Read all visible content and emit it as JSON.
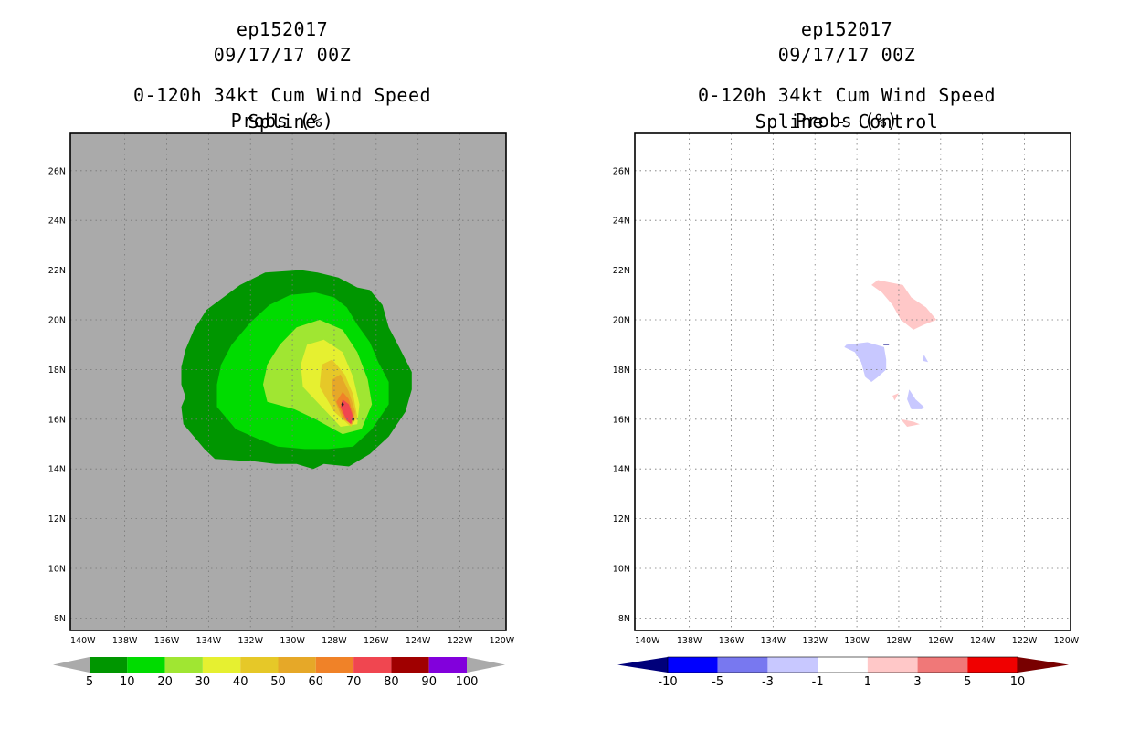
{
  "left_panel": {
    "storm_id": "ep152017",
    "datetime": "09/17/17 00Z",
    "product": "0-120h 34kt Cum Wind Speed Probs (%)",
    "subtitle": "Spline",
    "background_color": "#aaaaaa",
    "colorbar": {
      "colors": [
        "#009600",
        "#00dc00",
        "#a0e632",
        "#e6f030",
        "#e6c828",
        "#e6a828",
        "#f08228",
        "#f04650",
        "#a00000",
        "#8200dc"
      ],
      "labels": [
        "5",
        "10",
        "20",
        "30",
        "40",
        "50",
        "60",
        "70",
        "80",
        "90",
        "100"
      ]
    }
  },
  "right_panel": {
    "storm_id": "ep152017",
    "datetime": "09/17/17 00Z",
    "product": "0-120h 34kt Cum Wind Speed Probs (%)",
    "subtitle": "Spline - Control",
    "background_color": "#ffffff",
    "colorbar": {
      "colors": [
        "#0000ff",
        "#7878f0",
        "#c8c8ff",
        "#ffffff",
        "#ffc8c8",
        "#f07878",
        "#f00000"
      ],
      "low_color": "#00007a",
      "high_color": "#780000",
      "labels": [
        "-10",
        "-5",
        "-3",
        "-1",
        "1",
        "3",
        "5",
        "10"
      ]
    }
  },
  "axes": {
    "lon_labels": [
      "140W",
      "138W",
      "136W",
      "134W",
      "132W",
      "130W",
      "128W",
      "126W",
      "124W",
      "122W",
      "120W"
    ],
    "lat_labels": [
      "8N",
      "10N",
      "12N",
      "14N",
      "16N",
      "18N",
      "20N",
      "22N",
      "24N",
      "26N"
    ]
  },
  "contours_deg": {
    "p5": [
      [
        -133.7,
        14.4
      ],
      [
        -131.8,
        14.3
      ],
      [
        -130.8,
        14.2
      ],
      [
        -129.8,
        14.2
      ],
      [
        -129.0,
        14.0
      ],
      [
        -128.5,
        14.2
      ],
      [
        -127.3,
        14.1
      ],
      [
        -126.3,
        14.6
      ],
      [
        -125.4,
        15.3
      ],
      [
        -124.6,
        16.3
      ],
      [
        -124.3,
        17.2
      ],
      [
        -124.3,
        17.9
      ],
      [
        -124.9,
        18.9
      ],
      [
        -125.4,
        19.7
      ],
      [
        -125.7,
        20.6
      ],
      [
        -126.3,
        21.2
      ],
      [
        -126.9,
        21.3
      ],
      [
        -127.8,
        21.7
      ],
      [
        -128.8,
        21.9
      ],
      [
        -129.6,
        22.0
      ],
      [
        -131.3,
        21.9
      ],
      [
        -132.5,
        21.4
      ],
      [
        -133.3,
        20.9
      ],
      [
        -134.1,
        20.4
      ],
      [
        -134.7,
        19.6
      ],
      [
        -135.1,
        18.8
      ],
      [
        -135.3,
        18.1
      ],
      [
        -135.3,
        17.4
      ],
      [
        -135.1,
        16.9
      ],
      [
        -135.3,
        16.5
      ],
      [
        -135.2,
        15.8
      ],
      [
        -134.7,
        15.3
      ],
      [
        -134.2,
        14.8
      ]
    ],
    "p10": [
      [
        -131.6,
        15.2
      ],
      [
        -130.7,
        14.9
      ],
      [
        -129.4,
        14.8
      ],
      [
        -128.3,
        14.8
      ],
      [
        -127.1,
        14.9
      ],
      [
        -126.2,
        15.6
      ],
      [
        -125.4,
        16.6
      ],
      [
        -125.4,
        17.5
      ],
      [
        -125.9,
        18.3
      ],
      [
        -126.3,
        19.1
      ],
      [
        -126.9,
        19.8
      ],
      [
        -127.4,
        20.5
      ],
      [
        -128.0,
        20.9
      ],
      [
        -128.9,
        21.1
      ],
      [
        -130.1,
        21.0
      ],
      [
        -131.1,
        20.6
      ],
      [
        -132.0,
        19.9
      ],
      [
        -132.9,
        19.0
      ],
      [
        -133.4,
        18.2
      ],
      [
        -133.6,
        17.4
      ],
      [
        -133.6,
        16.5
      ],
      [
        -132.7,
        15.6
      ]
    ],
    "p20": [
      [
        -131.2,
        16.7
      ],
      [
        -129.9,
        16.4
      ],
      [
        -128.9,
        16.0
      ],
      [
        -127.6,
        15.4
      ],
      [
        -126.7,
        15.6
      ],
      [
        -126.2,
        16.6
      ],
      [
        -126.4,
        17.6
      ],
      [
        -126.9,
        18.7
      ],
      [
        -127.6,
        19.6
      ],
      [
        -128.7,
        20.0
      ],
      [
        -129.8,
        19.7
      ],
      [
        -130.6,
        19.0
      ],
      [
        -131.2,
        18.2
      ],
      [
        -131.4,
        17.4
      ]
    ],
    "p30": [
      [
        -129.5,
        17.3
      ],
      [
        -128.6,
        16.5
      ],
      [
        -127.7,
        15.7
      ],
      [
        -126.9,
        15.8
      ],
      [
        -126.8,
        16.6
      ],
      [
        -127.1,
        17.7
      ],
      [
        -127.6,
        18.7
      ],
      [
        -128.5,
        19.2
      ],
      [
        -129.3,
        19.0
      ],
      [
        -129.6,
        18.2
      ]
    ],
    "p40": [
      [
        -128.7,
        17.3
      ],
      [
        -128.0,
        16.3
      ],
      [
        -127.2,
        15.7
      ],
      [
        -126.9,
        16.1
      ],
      [
        -127.1,
        17.0
      ],
      [
        -127.5,
        17.8
      ],
      [
        -128.1,
        18.4
      ],
      [
        -128.6,
        18.2
      ]
    ],
    "p50": [
      [
        -128.1,
        17.0
      ],
      [
        -127.6,
        16.0
      ],
      [
        -127.1,
        15.8
      ],
      [
        -127.0,
        16.3
      ],
      [
        -127.3,
        17.1
      ],
      [
        -127.7,
        17.8
      ],
      [
        -128.1,
        17.6
      ]
    ],
    "p60": [
      [
        -127.9,
        16.7
      ],
      [
        -127.5,
        16.0
      ],
      [
        -127.2,
        15.8
      ],
      [
        -127.1,
        16.2
      ],
      [
        -127.3,
        16.8
      ],
      [
        -127.6,
        17.1
      ]
    ],
    "p70": [
      [
        -127.7,
        16.5
      ],
      [
        -127.4,
        15.95
      ],
      [
        -127.2,
        15.8
      ],
      [
        -127.1,
        16.1
      ],
      [
        -127.3,
        16.6
      ],
      [
        -127.6,
        16.8
      ]
    ],
    "p80_marks": [
      [
        -127.6,
        16.6
      ],
      [
        -127.1,
        16.0
      ]
    ],
    "diff_pos_a": [
      [
        -129.0,
        21.6
      ],
      [
        -128.4,
        21.5
      ],
      [
        -127.8,
        21.4
      ],
      [
        -127.4,
        20.9
      ],
      [
        -126.7,
        20.5
      ],
      [
        -126.2,
        20.0
      ],
      [
        -126.8,
        19.8
      ],
      [
        -127.3,
        19.6
      ],
      [
        -127.9,
        20.0
      ],
      [
        -128.3,
        20.6
      ],
      [
        -128.8,
        21.1
      ],
      [
        -129.3,
        21.4
      ]
    ],
    "diff_neg_a": [
      [
        -130.5,
        19.0
      ],
      [
        -129.5,
        19.1
      ],
      [
        -128.7,
        18.9
      ],
      [
        -128.6,
        18.4
      ],
      [
        -128.6,
        18.0
      ],
      [
        -129.0,
        17.7
      ],
      [
        -129.3,
        17.5
      ],
      [
        -129.6,
        17.7
      ],
      [
        -129.8,
        18.3
      ],
      [
        -130.1,
        18.7
      ],
      [
        -130.6,
        18.9
      ]
    ],
    "diff_neg_b": [
      [
        -127.5,
        17.2
      ],
      [
        -127.2,
        16.8
      ],
      [
        -126.8,
        16.5
      ],
      [
        -126.9,
        16.4
      ],
      [
        -127.4,
        16.4
      ],
      [
        -127.6,
        16.8
      ]
    ],
    "diff_neg_c": [
      [
        -126.8,
        18.6
      ],
      [
        -126.6,
        18.3
      ],
      [
        -126.85,
        18.35
      ]
    ],
    "diff_pos_b": [
      [
        -128.3,
        16.95
      ],
      [
        -128.0,
        17.05
      ],
      [
        -128.2,
        16.75
      ]
    ],
    "diff_pos_c": [
      [
        -127.9,
        16.0
      ],
      [
        -127.3,
        15.9
      ],
      [
        -127.0,
        15.8
      ],
      [
        -127.6,
        15.7
      ]
    ]
  }
}
